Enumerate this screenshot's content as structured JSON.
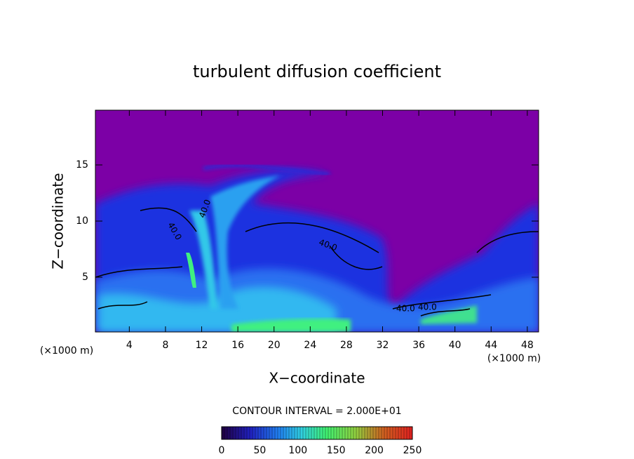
{
  "chart_data": {
    "type": "contour",
    "title": "turbulent diffusion coefficient",
    "x_label": "X−coordinate",
    "y_label": "Z−coordinate",
    "x_unit": "(×1000 m)",
    "x_unit_right": "(×1000 m)",
    "xlim": [
      0.25,
      49.25
    ],
    "xticks": [
      4,
      8,
      12,
      16,
      20,
      24,
      28,
      32,
      36,
      40,
      44,
      48
    ],
    "ylim": [
      0.125,
      19.875
    ],
    "yticks": [
      5,
      10,
      15
    ],
    "contour_interval_label": "CONTOUR INTERVAL = 2.000E+01",
    "contour_labels": [
      "40.0",
      "40.0",
      "40.0",
      "40.0",
      "40.0"
    ],
    "colorbar": {
      "lim": [
        0,
        250
      ],
      "ticks": [
        0,
        50,
        100,
        150,
        200,
        250
      ]
    }
  }
}
